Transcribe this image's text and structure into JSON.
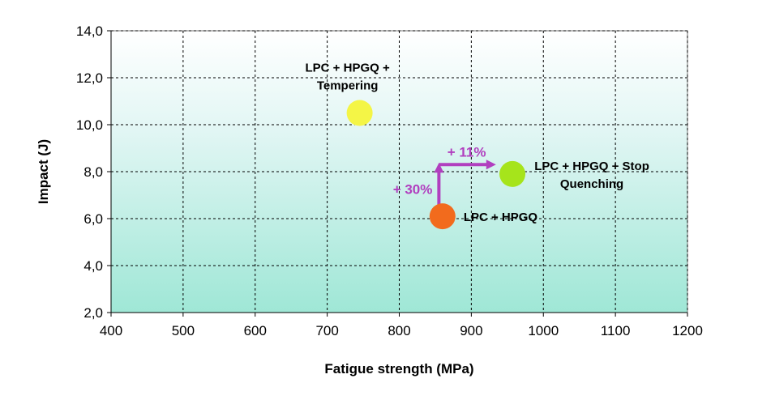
{
  "chart_data": {
    "type": "scatter",
    "xlabel": "Fatigue strength (MPa)",
    "ylabel": "Impact (J)",
    "xlim": [
      400,
      1200
    ],
    "ylim": [
      2.0,
      14.0
    ],
    "x_ticks": [
      400,
      500,
      600,
      700,
      800,
      900,
      1000,
      1100,
      1200
    ],
    "y_ticks": [
      2.0,
      4.0,
      6.0,
      8.0,
      10.0,
      12.0,
      14.0
    ],
    "y_tick_labels": [
      "2,0",
      "4,0",
      "6,0",
      "8,0",
      "10,0",
      "12,0",
      "14,0"
    ],
    "grid": true,
    "points": [
      {
        "label_lines": [
          "LPC + HPGQ +",
          "Tempering"
        ],
        "x": 745,
        "y": 10.5,
        "color": "#f4f546",
        "label_pos": "above"
      },
      {
        "label_lines": [
          "LPC + HPGQ"
        ],
        "x": 860,
        "y": 6.1,
        "color": "#f26b1d",
        "label_pos": "right"
      },
      {
        "label_lines": [
          "LPC + HPGQ + Stop",
          "Quenching"
        ],
        "x": 957,
        "y": 7.9,
        "color": "#a6e41b",
        "label_pos": "right"
      }
    ],
    "annotations": [
      {
        "text": "+ 30%",
        "from": [
          855,
          6.5
        ],
        "to": [
          855,
          8.3
        ],
        "direction": "up",
        "color": "#b13fbf"
      },
      {
        "text": "+ 11%",
        "from": [
          855,
          8.3
        ],
        "to": [
          932,
          8.3
        ],
        "direction": "right",
        "color": "#b13fbf"
      }
    ]
  }
}
